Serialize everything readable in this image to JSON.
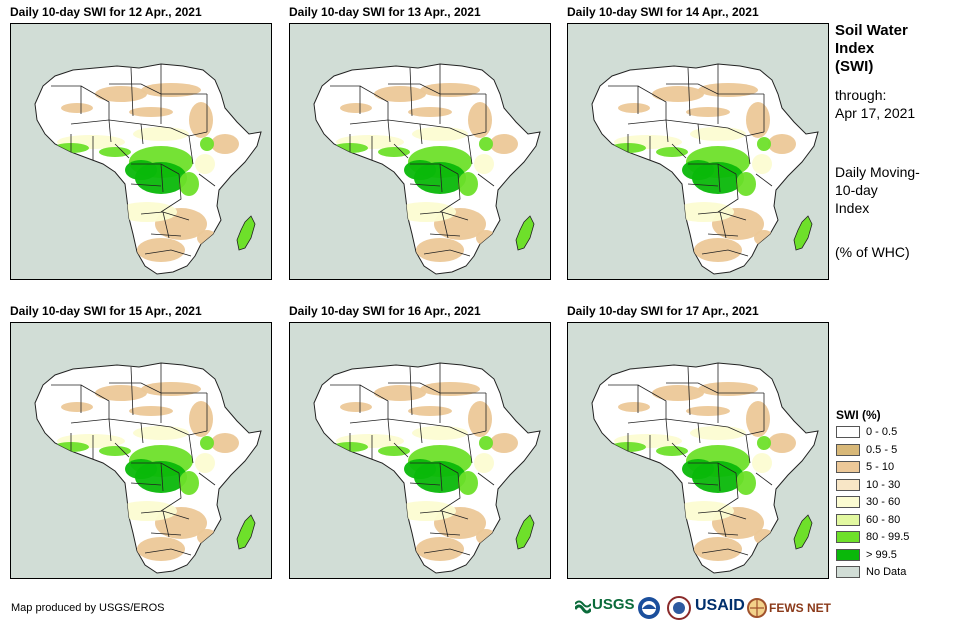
{
  "panels": [
    {
      "title": "Daily 10-day  SWI for 12 Apr., 2021"
    },
    {
      "title": "Daily 10-day  SWI for 13 Apr., 2021"
    },
    {
      "title": "Daily 10-day  SWI for 14 Apr., 2021"
    },
    {
      "title": "Daily 10-day  SWI for 15 Apr., 2021"
    },
    {
      "title": "Daily 10-day  SWI for 16 Apr., 2021"
    },
    {
      "title": "Daily 10-day  SWI for 17 Apr., 2021"
    }
  ],
  "side": {
    "title_lines": [
      "Soil Water",
      "Index",
      "(SWI)"
    ],
    "through_label": "through:",
    "through_date": "Apr 17, 2021",
    "index_lines": [
      "Daily Moving-",
      "10-day",
      "Index"
    ],
    "units": "(% of WHC)"
  },
  "legend": {
    "title": "SWI (%)",
    "items": [
      {
        "label": "0 - 0.5",
        "color": "#ffffff"
      },
      {
        "label": "0.5 - 5",
        "color": "#d8b878"
      },
      {
        "label": "5 - 10",
        "color": "#ecc898"
      },
      {
        "label": "10 - 30",
        "color": "#f8e6c6"
      },
      {
        "label": "30 - 60",
        "color": "#fcfcd2"
      },
      {
        "label": "60 - 80",
        "color": "#e2f8a0"
      },
      {
        "label": "80 - 99.5",
        "color": "#6ee02a"
      },
      {
        "label": "> 99.5",
        "color": "#0ab80a"
      },
      {
        "label": "No Data",
        "color": "#d1ddd6"
      }
    ]
  },
  "credit": "Map produced by USGS/EROS",
  "logos": {
    "usgs": "USGS",
    "usaid": "USAID",
    "fews": "FEWS NET"
  },
  "colors": {
    "ocean": "#d1ddd6",
    "land": "#ffffff",
    "dry": "#ecc898",
    "moist": "#fcfcd2",
    "wet": "#6ee02a",
    "saturated": "#0ab80a"
  }
}
